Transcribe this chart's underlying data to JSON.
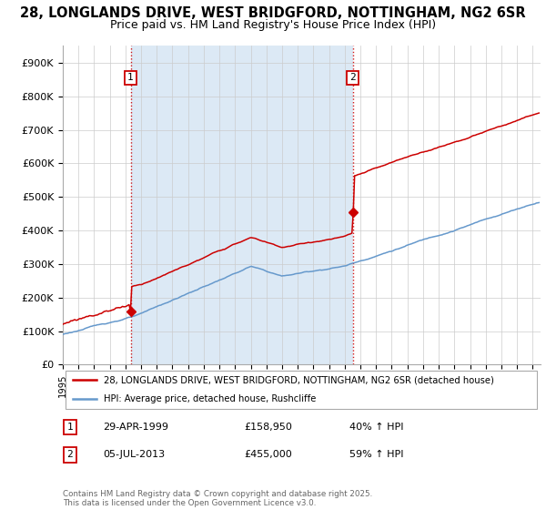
{
  "title_line1": "28, LONGLANDS DRIVE, WEST BRIDGFORD, NOTTINGHAM, NG2 6SR",
  "title_line2": "Price paid vs. HM Land Registry's House Price Index (HPI)",
  "title_fontsize": 10.5,
  "subtitle_fontsize": 9.0,
  "background_color": "#ffffff",
  "plot_bg_color": "#ffffff",
  "shaded_bg_color": "#dce9f5",
  "grid_color": "#cccccc",
  "red_color": "#cc0000",
  "blue_color": "#6699cc",
  "purchase_dates": [
    1999.33,
    2013.51
  ],
  "purchase_prices": [
    158950,
    455000
  ],
  "purchase_labels": [
    "1",
    "2"
  ],
  "vline_color": "#cc0000",
  "ylim": [
    0,
    950000
  ],
  "yticks": [
    0,
    100000,
    200000,
    300000,
    400000,
    500000,
    600000,
    700000,
    800000,
    900000
  ],
  "ytick_labels": [
    "£0",
    "£100K",
    "£200K",
    "£300K",
    "£400K",
    "£500K",
    "£600K",
    "£700K",
    "£800K",
    "£900K"
  ],
  "xlim_start": 1995.0,
  "xlim_end": 2025.5,
  "xticks": [
    1995,
    1996,
    1997,
    1998,
    1999,
    2000,
    2001,
    2002,
    2003,
    2004,
    2005,
    2006,
    2007,
    2008,
    2009,
    2010,
    2011,
    2012,
    2013,
    2014,
    2015,
    2016,
    2017,
    2018,
    2019,
    2020,
    2021,
    2022,
    2023,
    2024,
    2025
  ],
  "legend_label_red": "28, LONGLANDS DRIVE, WEST BRIDGFORD, NOTTINGHAM, NG2 6SR (detached house)",
  "legend_label_blue": "HPI: Average price, detached house, Rushcliffe",
  "note1_label": "1",
  "note1_date": "29-APR-1999",
  "note1_price": "£158,950",
  "note1_hpi": "40% ↑ HPI",
  "note2_label": "2",
  "note2_date": "05-JUL-2013",
  "note2_price": "£455,000",
  "note2_hpi": "59% ↑ HPI",
  "footer": "Contains HM Land Registry data © Crown copyright and database right 2025.\nThis data is licensed under the Open Government Licence v3.0."
}
